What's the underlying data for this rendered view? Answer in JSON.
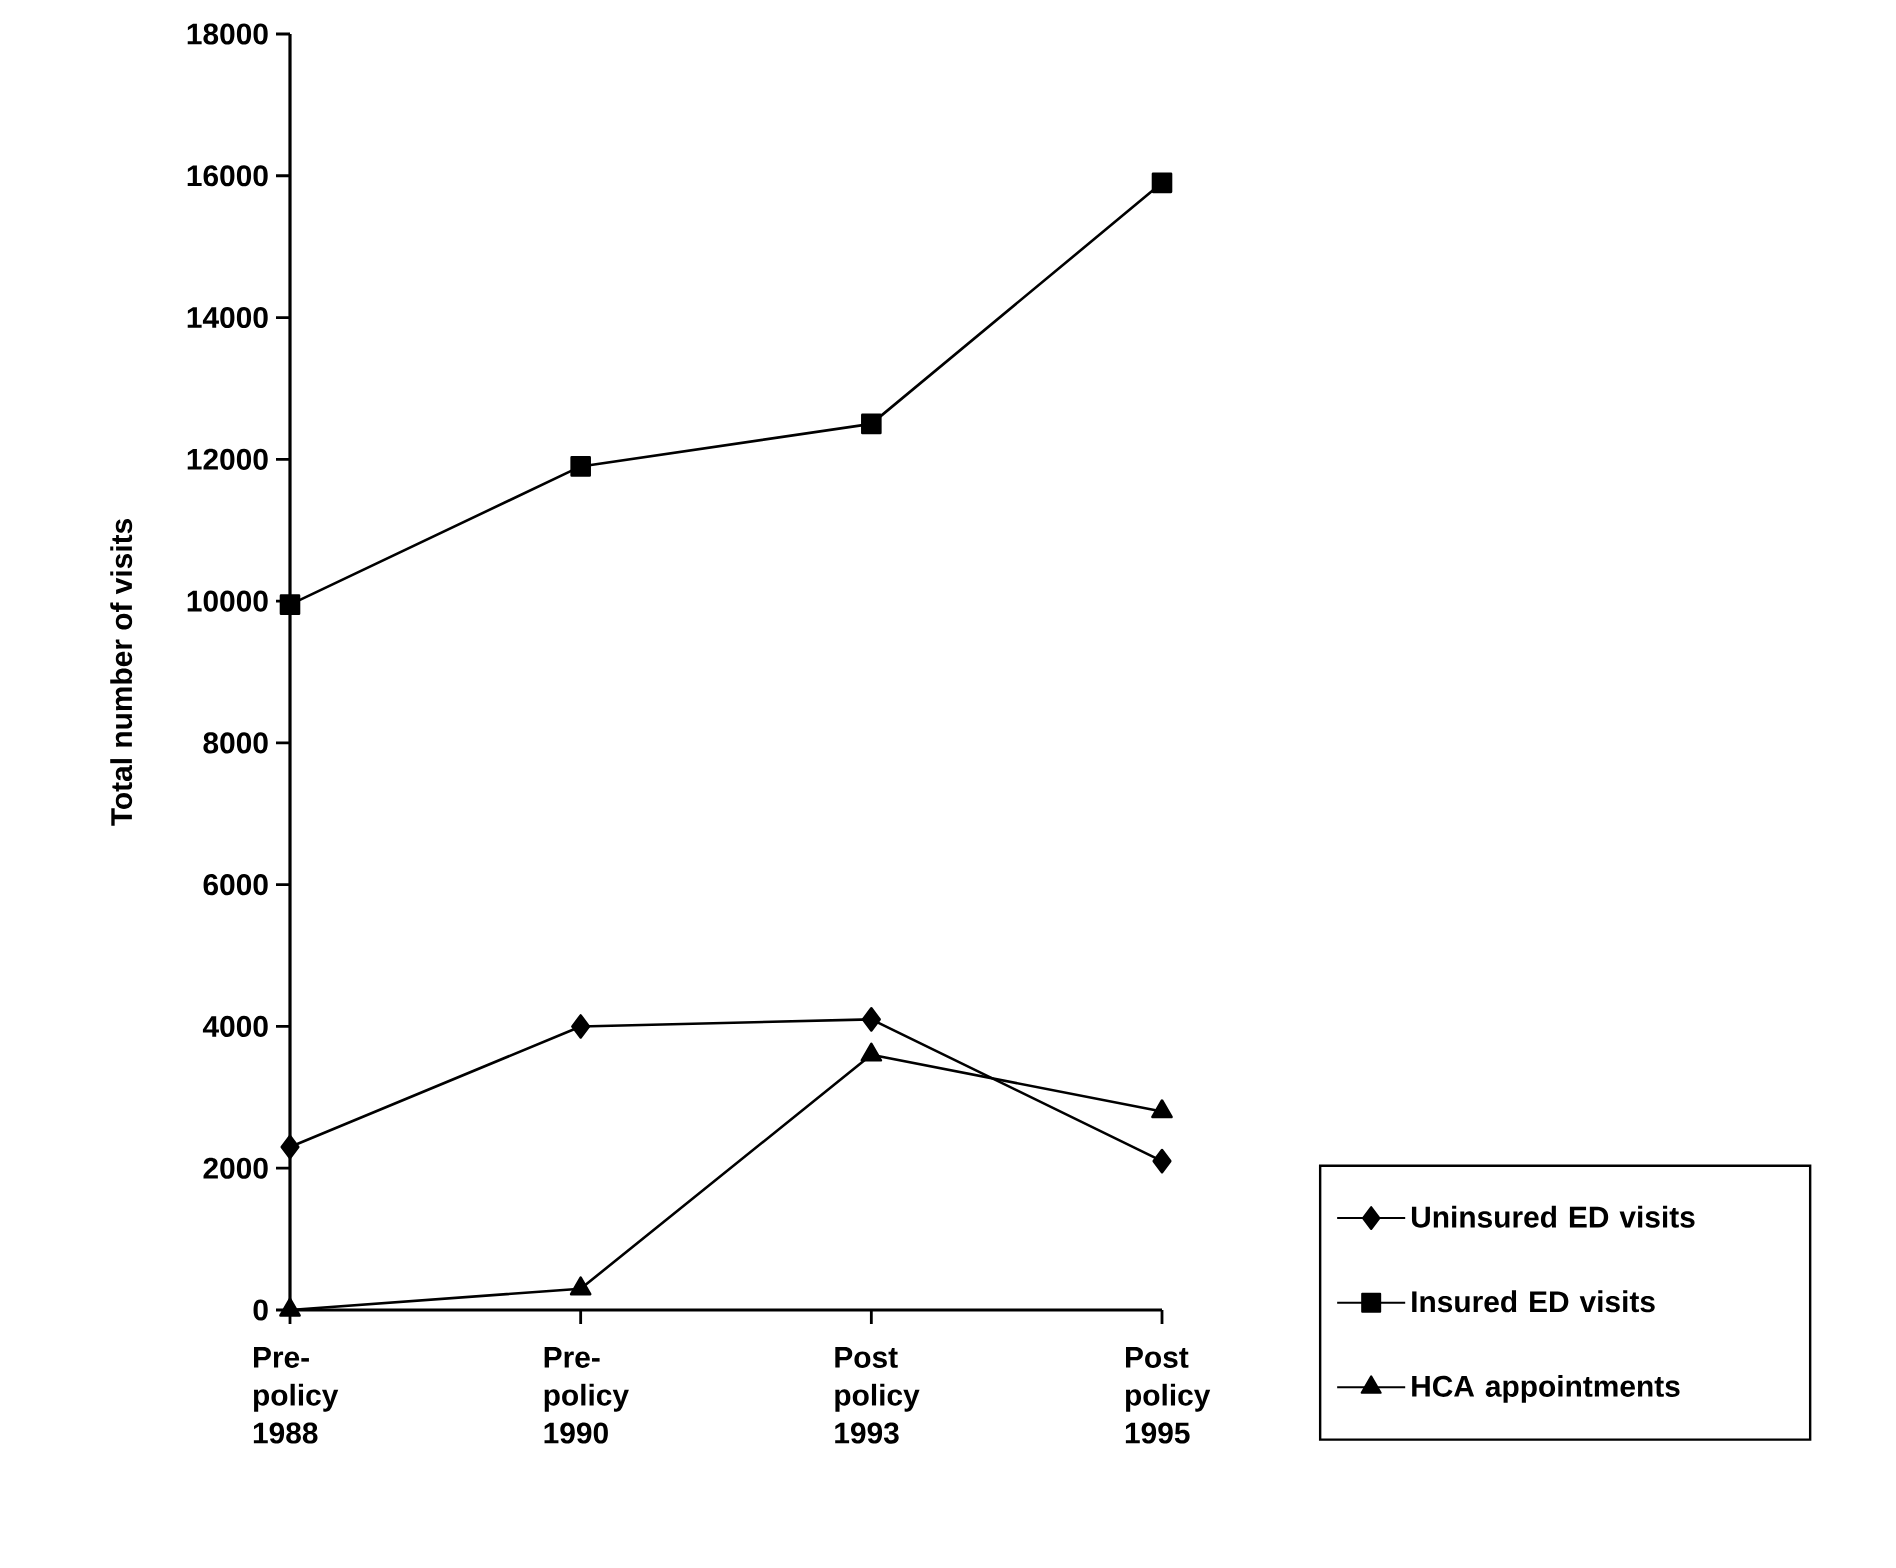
{
  "chart_data": {
    "type": "line",
    "ylabel": "Total number of visits",
    "categories": [
      "Pre-policy 1988",
      "Pre-policy 1990",
      "Post policy 1993",
      "Post policy 1995"
    ],
    "ylim": [
      0,
      18000
    ],
    "yticks": [
      0,
      2000,
      4000,
      6000,
      8000,
      10000,
      12000,
      14000,
      16000,
      18000
    ],
    "legend": "bottom right",
    "series": [
      {
        "name": "Uninsured ED visits",
        "color": "#000000",
        "marker": "diamond",
        "values": [
          2300,
          4000,
          4100,
          2100
        ]
      },
      {
        "name": "Insured ED visits",
        "color": "#000000",
        "marker": "square",
        "values": [
          9950,
          11900,
          12500,
          15900
        ]
      },
      {
        "name": "HCA appointments",
        "color": "#000000",
        "marker": "triangle",
        "values": [
          0,
          300,
          3600,
          2800
        ]
      }
    ]
  }
}
